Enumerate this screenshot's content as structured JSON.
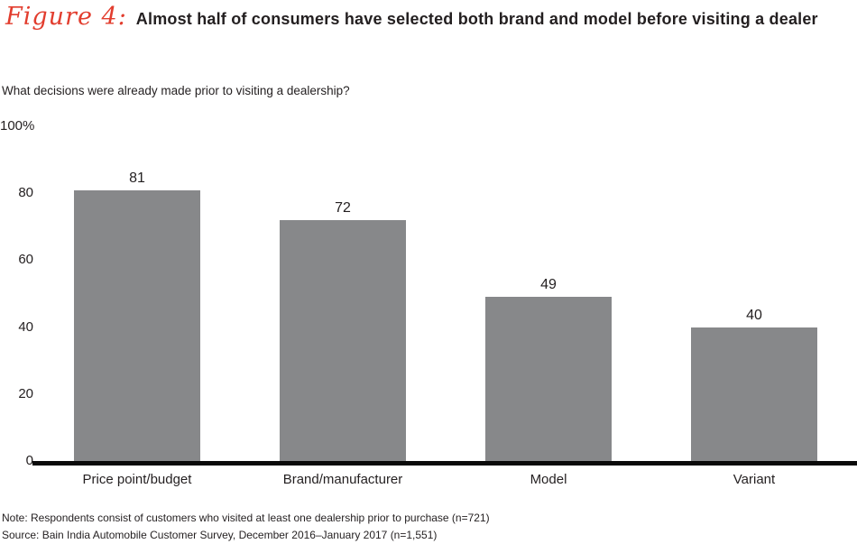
{
  "header": {
    "figure_label": "Figure 4:",
    "title": "Almost half of consumers have selected both brand and model before visiting a dealer"
  },
  "question": "What decisions were already made prior to visiting a dealership?",
  "chart_data": {
    "type": "bar",
    "title": "What decisions were already made prior to visiting a dealership?",
    "categories": [
      "Price point/budget",
      "Brand/manufacturer",
      "Model",
      "Variant"
    ],
    "values": [
      81,
      72,
      49,
      40
    ],
    "unit": "%",
    "xlabel": "",
    "ylabel": "",
    "ylim": [
      0,
      100
    ],
    "yticks": [
      {
        "label": "100%",
        "value": 100
      },
      {
        "label": "80",
        "value": 80
      },
      {
        "label": "60",
        "value": 60
      },
      {
        "label": "40",
        "value": 40
      },
      {
        "label": "20",
        "value": 20
      },
      {
        "label": "0",
        "value": 0
      }
    ],
    "grid": false,
    "legend": false,
    "bar_color": "#87888a"
  },
  "footer": {
    "note": "Note: Respondents consist of customers who visited at least one dealership prior to purchase (n=721)",
    "source": "Source: Bain India Automobile Customer Survey, December 2016–January 2017 (n=1,551)"
  },
  "colors": {
    "accent_red": "#e23d2e",
    "bar_gray": "#87888a",
    "text": "#231f20",
    "axis_black": "#0a0a0a"
  }
}
